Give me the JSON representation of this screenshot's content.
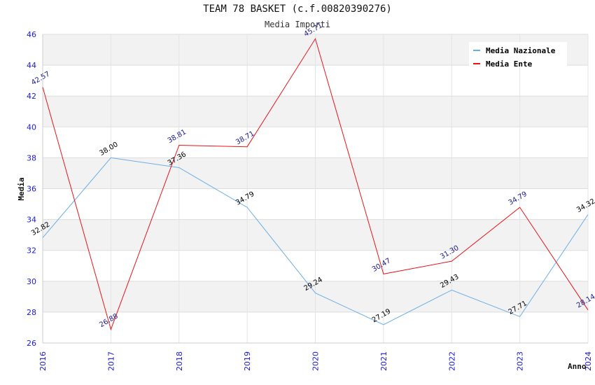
{
  "chart_data": {
    "type": "line",
    "title": "TEAM 78 BASKET (c.f.00820390276)",
    "subtitle": "Media Importi",
    "xlabel": "Anno",
    "ylabel": "Media",
    "x": [
      "2016",
      "2017",
      "2018",
      "2019",
      "2020",
      "2021",
      "2022",
      "2023",
      "2024"
    ],
    "ylim": [
      26,
      46
    ],
    "yticks": [
      "26",
      "28",
      "30",
      "32",
      "34",
      "36",
      "38",
      "40",
      "42",
      "44",
      "46"
    ],
    "grid": true,
    "legend": "top-right",
    "series": [
      {
        "name": "Media Nazionale",
        "color": "#6aaee8",
        "label_color": "#000000",
        "values": [
          32.82,
          38.0,
          37.36,
          34.79,
          29.24,
          27.19,
          29.43,
          27.71,
          34.32
        ],
        "labels": [
          "32.82",
          "38.00",
          "37.36",
          "34.79",
          "29.24",
          "27.19",
          "29.43",
          "27.71",
          "34.32"
        ]
      },
      {
        "name": "Media Ente",
        "color": "#e8141a",
        "label_color": "#1a1a8c",
        "values": [
          42.57,
          26.88,
          38.81,
          38.71,
          45.71,
          30.47,
          31.3,
          34.79,
          28.14
        ],
        "labels": [
          "42.57",
          "26.88",
          "38.81",
          "38.71",
          "45.71",
          "30.47",
          "31.30",
          "34.79",
          "28.14"
        ]
      }
    ]
  }
}
